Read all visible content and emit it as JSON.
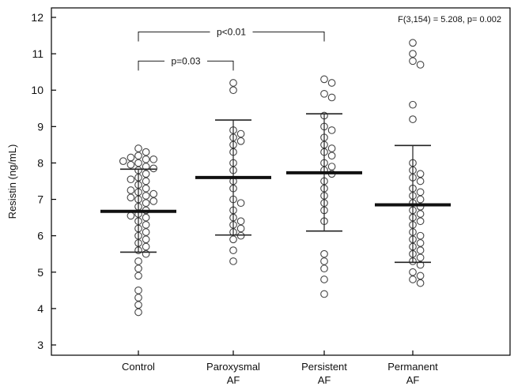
{
  "chart_data": {
    "type": "scatter",
    "ylabel": "Resistin (ng/mL)",
    "ylim": [
      3,
      12
    ],
    "yticks": [
      3,
      4,
      5,
      6,
      7,
      8,
      9,
      10,
      11,
      12
    ],
    "grid": false,
    "stat_text": "F(3,154) = 5.208, p= 0.002",
    "categories": [
      {
        "lines": [
          "Control"
        ]
      },
      {
        "lines": [
          "Paroxysmal",
          "AF"
        ]
      },
      {
        "lines": [
          "Persistent",
          "AF"
        ]
      },
      {
        "lines": [
          "Permanent",
          "AF"
        ]
      }
    ],
    "groups": [
      {
        "mean": 6.67,
        "sd_low": 5.55,
        "sd_high": 7.83,
        "points": [
          8.4,
          8.3,
          8.2,
          8.15,
          8.1,
          8.1,
          8.05,
          8.0,
          7.95,
          7.9,
          7.85,
          7.8,
          7.7,
          7.6,
          7.55,
          7.5,
          7.4,
          7.3,
          7.25,
          7.2,
          7.15,
          7.1,
          7.05,
          7.0,
          6.95,
          6.9,
          6.8,
          6.7,
          6.6,
          6.55,
          6.5,
          6.4,
          6.3,
          6.2,
          6.1,
          6.0,
          5.9,
          5.8,
          5.7,
          5.6,
          5.5,
          5.3,
          5.1,
          4.9,
          4.5,
          4.3,
          4.1,
          3.9
        ]
      },
      {
        "mean": 7.6,
        "sd_low": 6.02,
        "sd_high": 9.18,
        "points": [
          10.2,
          10.0,
          8.9,
          8.8,
          8.7,
          8.6,
          8.5,
          8.3,
          8.0,
          7.8,
          7.5,
          7.3,
          7.0,
          6.9,
          6.7,
          6.5,
          6.4,
          6.3,
          6.2,
          6.1,
          6.0,
          5.9,
          5.6,
          5.3
        ]
      },
      {
        "mean": 7.73,
        "sd_low": 6.13,
        "sd_high": 9.35,
        "points": [
          10.3,
          10.2,
          9.9,
          9.8,
          9.3,
          9.0,
          8.9,
          8.7,
          8.5,
          8.4,
          8.3,
          8.2,
          8.0,
          7.9,
          7.8,
          7.7,
          7.5,
          7.3,
          7.1,
          6.9,
          6.7,
          6.4,
          5.5,
          5.3,
          5.1,
          4.8,
          4.4
        ]
      },
      {
        "mean": 6.85,
        "sd_low": 5.27,
        "sd_high": 8.48,
        "points": [
          11.3,
          11.0,
          10.8,
          10.7,
          9.6,
          9.2,
          8.0,
          7.8,
          7.7,
          7.6,
          7.5,
          7.3,
          7.2,
          7.1,
          7.0,
          6.9,
          6.8,
          6.7,
          6.6,
          6.5,
          6.4,
          6.3,
          6.1,
          6.0,
          5.9,
          5.8,
          5.7,
          5.6,
          5.5,
          5.4,
          5.3,
          5.2,
          5.0,
          4.9,
          4.8,
          4.7
        ]
      }
    ],
    "annotations": [
      {
        "label": "p<0.01",
        "from": 0,
        "to": 2,
        "y": 11.6
      },
      {
        "label": "p=0.03",
        "from": 0,
        "to": 1,
        "y": 10.8
      }
    ]
  }
}
